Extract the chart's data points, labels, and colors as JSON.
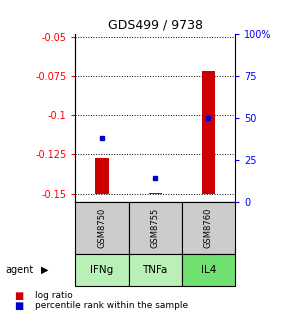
{
  "title": "GDS499 / 9738",
  "samples": [
    "GSM8750",
    "GSM8755",
    "GSM8760"
  ],
  "agents": [
    "IFNg",
    "TNFa",
    "IL4"
  ],
  "log_ratios": [
    -0.127,
    -0.1495,
    -0.072
  ],
  "percentile_ranks": [
    38,
    14,
    50
  ],
  "ylim_left": [
    -0.155,
    -0.048
  ],
  "ylim_right": [
    0,
    100
  ],
  "left_ticks": [
    -0.05,
    -0.075,
    -0.1,
    -0.125,
    -0.15
  ],
  "left_tick_labels": [
    "-0.05",
    "-0.075",
    "-0.1",
    "-0.125",
    "-0.15"
  ],
  "right_ticks": [
    0,
    25,
    50,
    75,
    100
  ],
  "right_tick_labels": [
    "0",
    "25",
    "50",
    "75",
    "100%"
  ],
  "bar_color": "#cc0000",
  "dot_color": "#0000cc",
  "agent_colors": [
    "#b8f0b8",
    "#b8f0b8",
    "#70e070"
  ],
  "sample_box_color": "#cccccc",
  "bar_width": 0.25,
  "baseline_y": -0.15
}
